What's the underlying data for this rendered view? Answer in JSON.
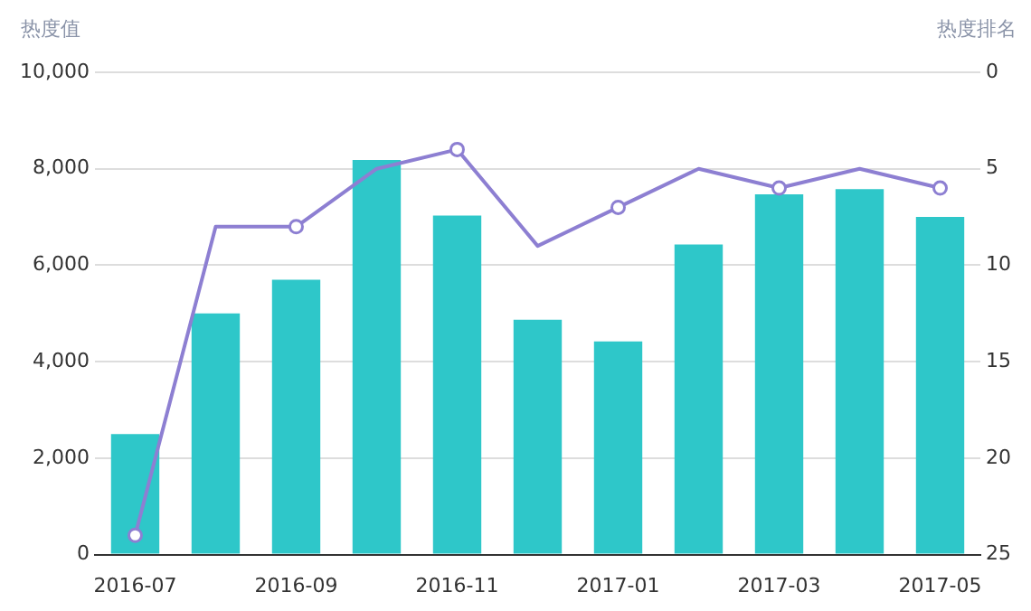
{
  "chart_data": {
    "type": "bar",
    "categories": [
      "2016-07",
      null,
      "2016-09",
      null,
      "2016-11",
      null,
      "2017-01",
      null,
      "2017-03",
      null,
      "2017-05"
    ],
    "ylabel": "热度值",
    "y2label": "热度排名",
    "ylim": [
      0,
      10000
    ],
    "yticks": [
      {
        "value": 0,
        "label": "0"
      },
      {
        "value": 2000,
        "label": "2,000"
      },
      {
        "value": 4000,
        "label": "4,000"
      },
      {
        "value": 6000,
        "label": "6,000"
      },
      {
        "value": 8000,
        "label": "8,000"
      },
      {
        "value": 10000,
        "label": "10,000"
      }
    ],
    "y2lim": [
      25,
      0
    ],
    "y2ticks": [
      0,
      5,
      10,
      15,
      20,
      25
    ],
    "grid": "y",
    "legend": false,
    "series": [
      {
        "color": "#2ec7c9",
        "values": [
          2500,
          5000,
          5700,
          8180,
          7030,
          4870,
          4420,
          6430,
          7470,
          7580,
          7000
        ]
      },
      {
        "type": "line",
        "axis": "y2",
        "color": "#8d7fd2",
        "marker": "circle",
        "values": [
          24,
          8,
          8,
          5,
          4,
          9,
          7,
          5,
          6,
          5,
          6
        ]
      }
    ]
  }
}
